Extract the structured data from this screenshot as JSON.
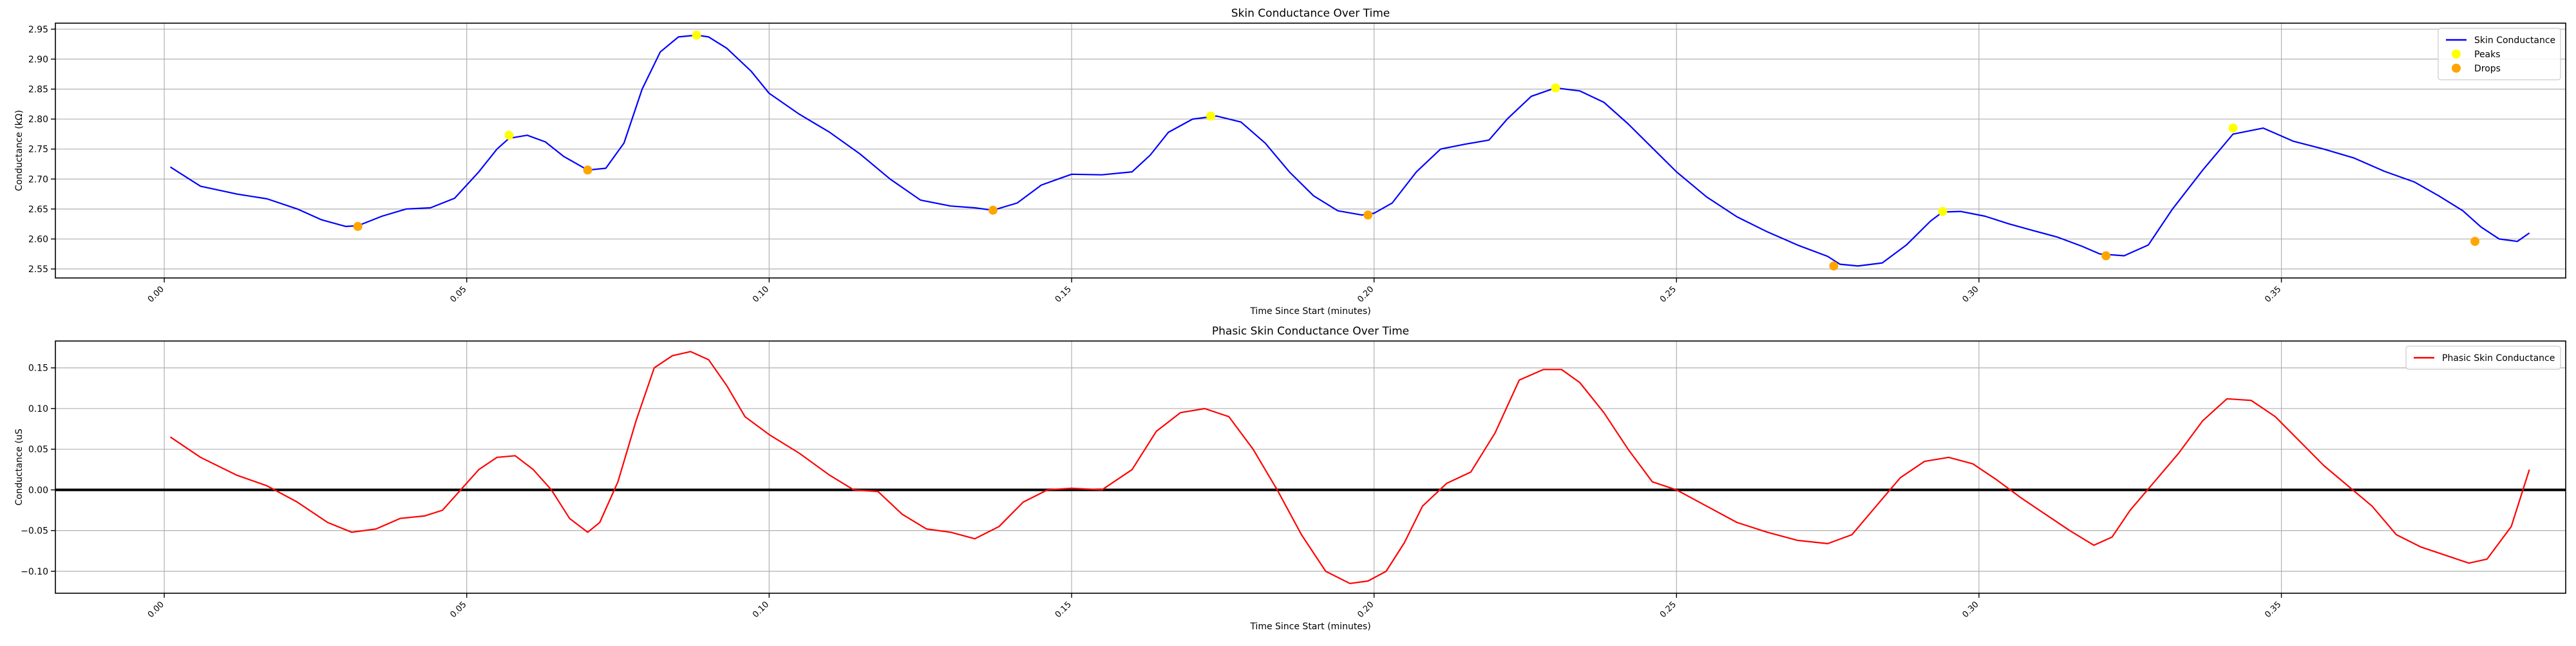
{
  "chart_data": [
    {
      "type": "line",
      "title": "Skin Conductance Over Time",
      "xlabel": "Time Since Start (minutes)",
      "ylabel": "Conductance (kΩ)",
      "xlim": [
        -0.018,
        0.397
      ],
      "ylim": [
        2.535,
        2.96
      ],
      "x_ticks": [
        0.0,
        0.05,
        0.1,
        0.15,
        0.2,
        0.25,
        0.3,
        0.35
      ],
      "x_tick_labels": [
        "0.00",
        "0.05",
        "0.10",
        "0.15",
        "0.20",
        "0.25",
        "0.30",
        "0.35"
      ],
      "y_ticks": [
        2.55,
        2.6,
        2.65,
        2.7,
        2.75,
        2.8,
        2.85,
        2.9,
        2.95
      ],
      "y_tick_labels": [
        "2.55",
        "2.60",
        "2.65",
        "2.70",
        "2.75",
        "2.80",
        "2.85",
        "2.90",
        "2.95"
      ],
      "grid": true,
      "legend_position": "top-right",
      "series": [
        {
          "name": "Skin Conductance",
          "kind": "line",
          "color": "#0000ff",
          "x": [
            0.001,
            0.006,
            0.012,
            0.017,
            0.022,
            0.026,
            0.03,
            0.032,
            0.036,
            0.04,
            0.044,
            0.048,
            0.052,
            0.055,
            0.057,
            0.06,
            0.063,
            0.066,
            0.07,
            0.073,
            0.076,
            0.079,
            0.082,
            0.085,
            0.088,
            0.09,
            0.093,
            0.097,
            0.1,
            0.105,
            0.11,
            0.115,
            0.12,
            0.125,
            0.13,
            0.134,
            0.137,
            0.141,
            0.145,
            0.15,
            0.155,
            0.16,
            0.163,
            0.166,
            0.17,
            0.174,
            0.178,
            0.182,
            0.186,
            0.19,
            0.194,
            0.198,
            0.2,
            0.203,
            0.207,
            0.211,
            0.215,
            0.219,
            0.222,
            0.226,
            0.23,
            0.234,
            0.238,
            0.242,
            0.246,
            0.25,
            0.255,
            0.26,
            0.265,
            0.27,
            0.275,
            0.277,
            0.28,
            0.284,
            0.288,
            0.292,
            0.294,
            0.297,
            0.301,
            0.305,
            0.309,
            0.313,
            0.317,
            0.32,
            0.324,
            0.328,
            0.332,
            0.337,
            0.342,
            0.347,
            0.352,
            0.357,
            0.362,
            0.367,
            0.372,
            0.376,
            0.38,
            0.383,
            0.386,
            0.389,
            0.391
          ],
          "y": [
            2.72,
            2.688,
            2.675,
            2.667,
            2.65,
            2.632,
            2.621,
            2.622,
            2.638,
            2.65,
            2.652,
            2.668,
            2.712,
            2.75,
            2.768,
            2.773,
            2.762,
            2.738,
            2.715,
            2.718,
            2.76,
            2.85,
            2.912,
            2.937,
            2.94,
            2.937,
            2.918,
            2.88,
            2.843,
            2.808,
            2.778,
            2.742,
            2.7,
            2.665,
            2.655,
            2.652,
            2.648,
            2.66,
            2.69,
            2.708,
            2.707,
            2.712,
            2.74,
            2.778,
            2.8,
            2.805,
            2.795,
            2.76,
            2.712,
            2.672,
            2.647,
            2.64,
            2.643,
            2.66,
            2.712,
            2.75,
            2.758,
            2.765,
            2.8,
            2.838,
            2.852,
            2.847,
            2.828,
            2.792,
            2.752,
            2.712,
            2.67,
            2.637,
            2.612,
            2.59,
            2.571,
            2.558,
            2.555,
            2.56,
            2.59,
            2.63,
            2.645,
            2.646,
            2.638,
            2.625,
            2.614,
            2.603,
            2.588,
            2.575,
            2.572,
            2.59,
            2.65,
            2.715,
            2.775,
            2.785,
            2.763,
            2.75,
            2.735,
            2.713,
            2.695,
            2.672,
            2.647,
            2.62,
            2.6,
            2.596,
            2.61
          ]
        },
        {
          "name": "Peaks",
          "kind": "scatter",
          "color": "#ffff00",
          "x": [
            0.057,
            0.088,
            0.173,
            0.23,
            0.294,
            0.342
          ],
          "y": [
            2.773,
            2.94,
            2.805,
            2.852,
            2.646,
            2.785
          ]
        },
        {
          "name": "Drops",
          "kind": "scatter",
          "color": "#ffa500",
          "x": [
            0.032,
            0.07,
            0.137,
            0.199,
            0.276,
            0.321,
            0.382
          ],
          "y": [
            2.621,
            2.715,
            2.648,
            2.64,
            2.555,
            2.572,
            2.596
          ]
        }
      ]
    },
    {
      "type": "line",
      "title": "Phasic Skin Conductance Over Time",
      "xlabel": "Time Since Start (minutes)",
      "ylabel": "Conductance (uS",
      "xlim": [
        -0.018,
        0.397
      ],
      "ylim": [
        -0.127,
        0.183
      ],
      "x_ticks": [
        0.0,
        0.05,
        0.1,
        0.15,
        0.2,
        0.25,
        0.3,
        0.35
      ],
      "x_tick_labels": [
        "0.00",
        "0.05",
        "0.10",
        "0.15",
        "0.20",
        "0.25",
        "0.30",
        "0.35"
      ],
      "y_ticks": [
        -0.1,
        -0.05,
        0.0,
        0.05,
        0.1,
        0.15
      ],
      "y_tick_labels": [
        "−0.10",
        "−0.05",
        "0.00",
        "0.05",
        "0.10",
        "0.15"
      ],
      "grid": true,
      "zero_line": true,
      "legend_position": "top-right",
      "series": [
        {
          "name": "Phasic Skin Conductance",
          "kind": "line",
          "color": "#ff0000",
          "x": [
            0.001,
            0.006,
            0.012,
            0.017,
            0.022,
            0.027,
            0.031,
            0.035,
            0.039,
            0.043,
            0.046,
            0.049,
            0.052,
            0.055,
            0.058,
            0.061,
            0.064,
            0.067,
            0.07,
            0.072,
            0.075,
            0.078,
            0.081,
            0.084,
            0.087,
            0.09,
            0.093,
            0.096,
            0.1,
            0.105,
            0.11,
            0.114,
            0.118,
            0.122,
            0.126,
            0.13,
            0.134,
            0.138,
            0.142,
            0.146,
            0.15,
            0.155,
            0.16,
            0.164,
            0.168,
            0.172,
            0.176,
            0.18,
            0.184,
            0.188,
            0.192,
            0.196,
            0.199,
            0.202,
            0.205,
            0.208,
            0.212,
            0.216,
            0.22,
            0.224,
            0.228,
            0.231,
            0.234,
            0.238,
            0.242,
            0.246,
            0.25,
            0.255,
            0.26,
            0.265,
            0.27,
            0.275,
            0.279,
            0.283,
            0.287,
            0.291,
            0.295,
            0.299,
            0.303,
            0.307,
            0.311,
            0.315,
            0.319,
            0.322,
            0.325,
            0.329,
            0.333,
            0.337,
            0.341,
            0.345,
            0.349,
            0.353,
            0.357,
            0.361,
            0.365,
            0.369,
            0.373,
            0.377,
            0.381,
            0.384,
            0.388,
            0.391
          ],
          "y": [
            0.065,
            0.04,
            0.018,
            0.005,
            -0.015,
            -0.04,
            -0.052,
            -0.048,
            -0.035,
            -0.032,
            -0.025,
            0.0,
            0.025,
            0.04,
            0.042,
            0.025,
            0.0,
            -0.035,
            -0.052,
            -0.04,
            0.01,
            0.085,
            0.15,
            0.165,
            0.17,
            0.16,
            0.128,
            0.09,
            0.068,
            0.045,
            0.018,
            0.0,
            -0.002,
            -0.03,
            -0.048,
            -0.052,
            -0.06,
            -0.045,
            -0.015,
            0.0,
            0.002,
            0.0,
            0.025,
            0.072,
            0.095,
            0.1,
            0.09,
            0.05,
            0.0,
            -0.055,
            -0.1,
            -0.115,
            -0.112,
            -0.1,
            -0.065,
            -0.02,
            0.008,
            0.022,
            0.07,
            0.135,
            0.148,
            0.148,
            0.132,
            0.095,
            0.05,
            0.01,
            0.0,
            -0.02,
            -0.04,
            -0.052,
            -0.062,
            -0.066,
            -0.055,
            -0.02,
            0.015,
            0.035,
            0.04,
            0.032,
            0.012,
            -0.01,
            -0.03,
            -0.05,
            -0.068,
            -0.058,
            -0.025,
            0.01,
            0.045,
            0.085,
            0.112,
            0.11,
            0.09,
            0.06,
            0.03,
            0.005,
            -0.02,
            -0.055,
            -0.07,
            -0.08,
            -0.09,
            -0.085,
            -0.045,
            0.025
          ]
        }
      ]
    }
  ]
}
